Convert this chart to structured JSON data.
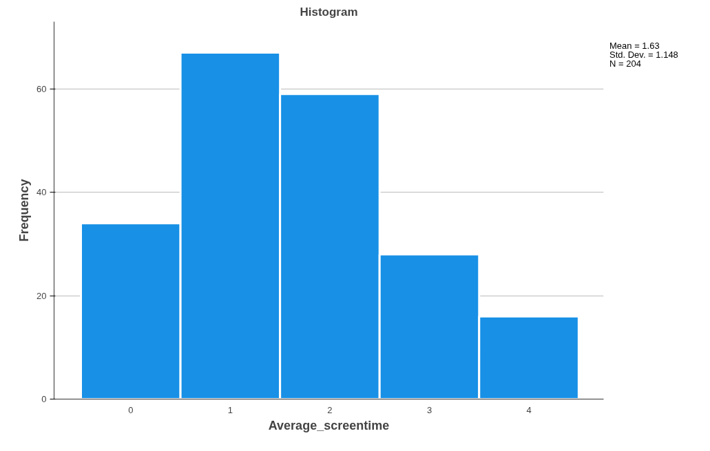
{
  "chart_data": {
    "type": "histogram",
    "title": "Histogram",
    "xlabel": "Average_screentime",
    "ylabel": "Frequency",
    "bins": [
      -0.5,
      0.5,
      1.5,
      2.5,
      3.5,
      4.5
    ],
    "values": [
      34,
      67,
      59,
      28,
      16
    ],
    "color": "#1790e6",
    "xlim": [
      -0.77,
      4.75
    ],
    "ylim": [
      0,
      73
    ],
    "xticks": [
      0,
      1,
      2,
      3,
      4
    ],
    "yticks": [
      0,
      20,
      40,
      60
    ],
    "grid": "y",
    "annotations": [
      "Mean = 1.63",
      "Std. Dev. = 1.148",
      "N = 204"
    ]
  }
}
